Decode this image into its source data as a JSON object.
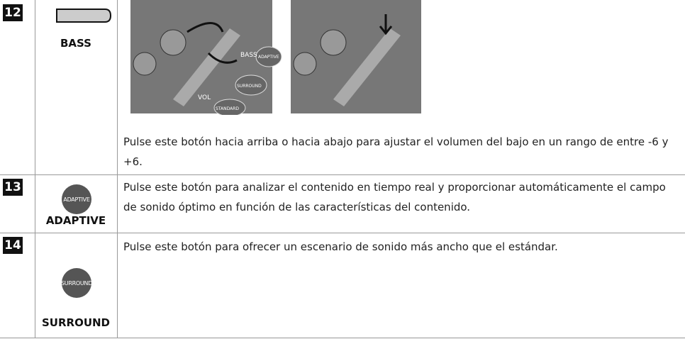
{
  "rows": [
    {
      "number": "12",
      "label": "BASS",
      "description": "Pulse este botón hacia arriba o hacia abajo para ajustar el volumen del bajo en un rango de entre -6 y +6.",
      "illustration_labels": [
        "VOL",
        "BASS",
        "SURROUND",
        "STANDARD",
        "ADAPTIVE"
      ]
    },
    {
      "number": "13",
      "label": "ADAPTIVE",
      "button_text": "ADAPTIVE",
      "description": "Pulse este botón para analizar el contenido en tiempo real y proporcionar automáticamente el campo de sonido óptimo en función de las características del contenido."
    },
    {
      "number": "14",
      "label": "SURROUND",
      "button_text": "SURROUND",
      "description": "Pulse este botón para ofrecer un escenario de sonido más ancho que el estándar."
    }
  ]
}
